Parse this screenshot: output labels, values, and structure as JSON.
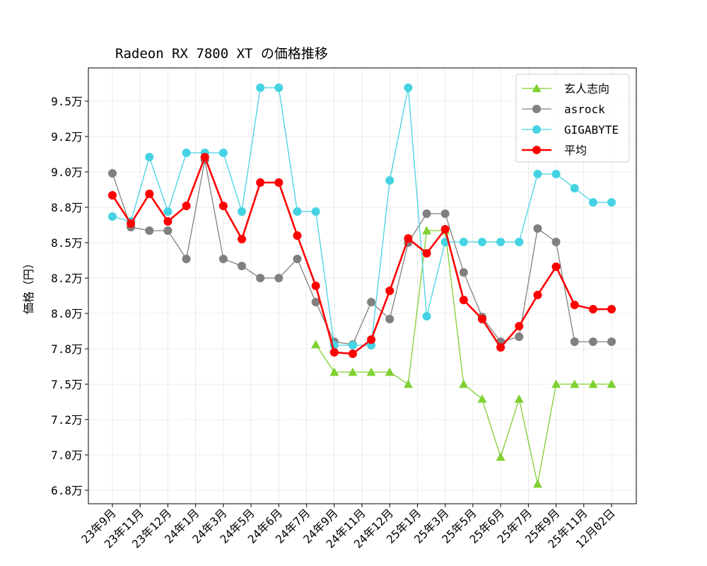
{
  "chart_data": {
    "type": "line",
    "title": "Radeon RX 7800 XT の価格推移",
    "xlabel": "",
    "ylabel": "価格（円）",
    "ylim": [
      66550,
      97350
    ],
    "grid": true,
    "legend_placement": "top-right",
    "x_tick_labels": [
      "23年9月",
      "23年11月",
      "23年12月",
      "24年1月",
      "24年3月",
      "24年5月",
      "24年6月",
      "24年7月",
      "24年9月",
      "24年11月",
      "24年12月",
      "25年1月",
      "25年3月",
      "25年5月",
      "25年6月",
      "25年7月",
      "25年9月",
      "25年11月",
      "12月02日"
    ],
    "y_ticks": [
      {
        "value": 67500,
        "label": "6.8万"
      },
      {
        "value": 70000,
        "label": "7.0万"
      },
      {
        "value": 72500,
        "label": "7.2万"
      },
      {
        "value": 75000,
        "label": "7.5万"
      },
      {
        "value": 77500,
        "label": "7.8万"
      },
      {
        "value": 80000,
        "label": "8.0万"
      },
      {
        "value": 82500,
        "label": "8.2万"
      },
      {
        "value": 85000,
        "label": "8.5万"
      },
      {
        "value": 87500,
        "label": "8.8万"
      },
      {
        "value": 90000,
        "label": "9.0万"
      },
      {
        "value": 92500,
        "label": "9.2万"
      },
      {
        "value": 95000,
        "label": "9.5万"
      }
    ],
    "series": [
      {
        "name": "玄人志向",
        "color": "#7ed12e",
        "marker": "triangle",
        "values": [
          null,
          null,
          null,
          null,
          null,
          null,
          null,
          null,
          null,
          null,
          null,
          77800,
          75850,
          75850,
          75850,
          75850,
          75000,
          85850,
          85850,
          75000,
          73950,
          69850,
          73950,
          67950,
          75000,
          75000,
          75000,
          75000
        ]
      },
      {
        "name": "asrock",
        "color": "#808080",
        "marker": "circle",
        "values": [
          89900,
          86100,
          85850,
          85850,
          83850,
          90850,
          83850,
          83350,
          82500,
          82500,
          83850,
          80800,
          78000,
          77800,
          80800,
          79600,
          85000,
          87050,
          87050,
          82900,
          79750,
          78000,
          78350,
          86000,
          85050,
          78000,
          78000,
          78000
        ]
      },
      {
        "name": "GIGABYTE",
        "color": "#45d3e3",
        "marker": "circle",
        "values": [
          86850,
          86500,
          91050,
          87200,
          91350,
          91350,
          91350,
          87200,
          95950,
          95950,
          87200,
          87200,
          77750,
          77750,
          77750,
          89400,
          95950,
          79800,
          85050,
          85050,
          85050,
          85050,
          85050,
          89850,
          89850,
          88850,
          87850,
          87850
        ]
      },
      {
        "name": "平均",
        "color": "#ff0000",
        "marker": "circle",
        "values": [
          88350,
          86350,
          88450,
          86500,
          87600,
          91050,
          87600,
          85250,
          89250,
          89250,
          85500,
          81950,
          77250,
          77150,
          78150,
          81600,
          85300,
          84250,
          85950,
          80950,
          79600,
          77600,
          79100,
          81300,
          83300,
          80600,
          80300,
          80300
        ]
      }
    ]
  }
}
